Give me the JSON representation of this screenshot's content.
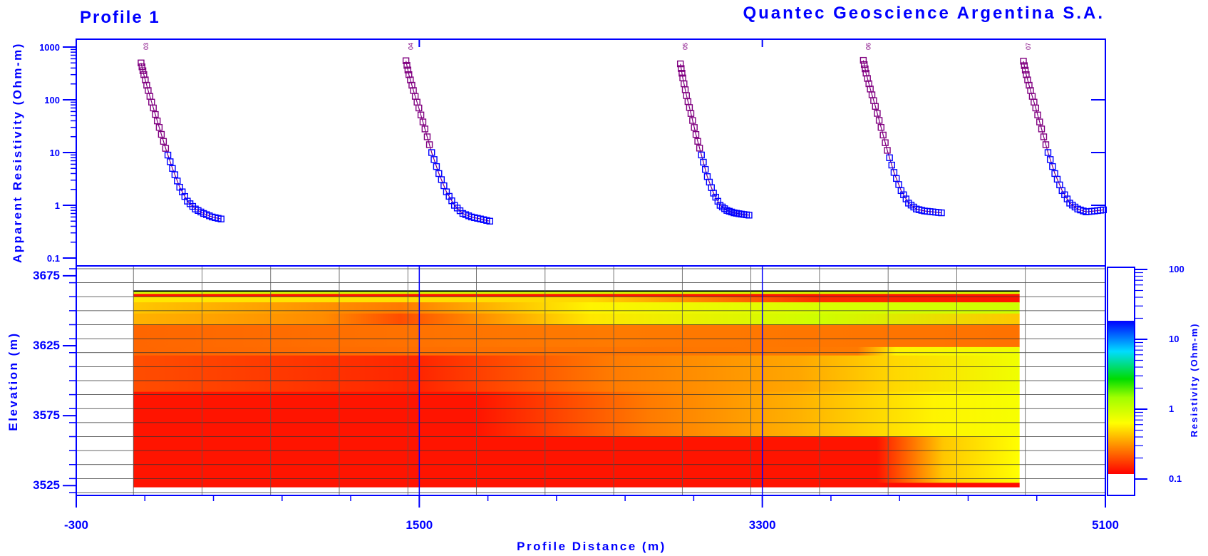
{
  "header": {
    "profile_title": "Profile 1",
    "company": "Quantec Geoscience Argentina S.A."
  },
  "colors": {
    "axis": "#0000ff",
    "text": "#0000ff",
    "grid": "#000000",
    "curve_high": "#800080",
    "curve_low": "#0000ff",
    "colorbar_low": "#ff0000",
    "colorbar_high": "#0000ff"
  },
  "chart_data": [
    {
      "type": "scatter",
      "title": "",
      "xlabel": "",
      "ylabel": "Apparent Resistivity (Ohm-m)",
      "y_scale": "log",
      "ylim": [
        0.1,
        1000
      ],
      "xlim": [
        -300,
        5100
      ],
      "y_ticks": [
        "1000",
        "100",
        "10",
        "1",
        "0.1"
      ],
      "grid": false,
      "series": [
        {
          "name": "03",
          "x_start": 40,
          "x_end": 460,
          "values": [
            500,
            300,
            150,
            70,
            30,
            12,
            5,
            2.2,
            1.2,
            0.85,
            0.7,
            0.6,
            0.55
          ]
        },
        {
          "name": "04",
          "x_start": 1430,
          "x_end": 1870,
          "values": [
            550,
            300,
            150,
            70,
            28,
            10,
            4,
            1.8,
            1.0,
            0.7,
            0.6,
            0.55,
            0.5
          ]
        },
        {
          "name": "05",
          "x_start": 2870,
          "x_end": 3230,
          "values": [
            480,
            260,
            120,
            55,
            22,
            9,
            3.5,
            1.7,
            1.0,
            0.8,
            0.72,
            0.68,
            0.65
          ]
        },
        {
          "name": "06",
          "x_start": 3830,
          "x_end": 4240,
          "values": [
            560,
            320,
            160,
            75,
            30,
            11,
            4.2,
            1.9,
            1.1,
            0.85,
            0.78,
            0.75,
            0.72
          ]
        },
        {
          "name": "07",
          "x_start": 4670,
          "x_end": 5090,
          "values": [
            540,
            300,
            150,
            70,
            28,
            10,
            4,
            1.9,
            1.1,
            0.85,
            0.75,
            0.78,
            0.82
          ]
        }
      ]
    },
    {
      "type": "heatmap",
      "title": "",
      "xlabel": "Profile Distance (m)",
      "ylabel": "Elevation (m)",
      "xlim": [
        -300,
        5100
      ],
      "ylim": [
        3520,
        3680
      ],
      "x_ticks": [
        "-300",
        "1500",
        "3300",
        "5100"
      ],
      "y_ticks": [
        "3675",
        "3625",
        "3575",
        "3525"
      ],
      "grid": true,
      "colorbar": {
        "label": "Resistivity (Ohm-m)",
        "scale": "log",
        "range": [
          0.1,
          100
        ],
        "ticks": [
          "100",
          "10",
          "1",
          "0.1"
        ]
      },
      "layers": [
        {
          "top": 3664,
          "bottom": 3662,
          "x_resistivity": [
            [
              0,
              1.5
            ],
            [
              4650,
              1.5
            ]
          ]
        },
        {
          "top": 3662,
          "bottom": 3660,
          "x_resistivity": [
            [
              0,
              0.12
            ],
            [
              4650,
              0.12
            ]
          ]
        },
        {
          "top": 3660,
          "bottom": 3656,
          "x_resistivity": [
            [
              0,
              0.8
            ],
            [
              2400,
              0.7
            ],
            [
              3600,
              0.15
            ],
            [
              4650,
              0.12
            ]
          ]
        },
        {
          "top": 3656,
          "bottom": 3648,
          "x_resistivity": [
            [
              0,
              0.6
            ],
            [
              1400,
              0.3
            ],
            [
              2400,
              0.9
            ],
            [
              3600,
              1.6
            ],
            [
              4650,
              1.8
            ]
          ]
        },
        {
          "top": 3648,
          "bottom": 3640,
          "x_resistivity": [
            [
              0,
              0.5
            ],
            [
              1000,
              0.35
            ],
            [
              1400,
              0.2
            ],
            [
              2400,
              0.8
            ],
            [
              3600,
              1.8
            ],
            [
              4650,
              0.6
            ]
          ]
        },
        {
          "top": 3640,
          "bottom": 3624,
          "x_resistivity": [
            [
              0,
              0.25
            ],
            [
              2500,
              0.3
            ],
            [
              4650,
              0.28
            ]
          ]
        },
        {
          "top": 3624,
          "bottom": 3618,
          "x_resistivity": [
            [
              0,
              0.25
            ],
            [
              3800,
              0.3
            ],
            [
              4000,
              0.9
            ],
            [
              4650,
              1.2
            ]
          ]
        },
        {
          "top": 3618,
          "bottom": 3592,
          "x_resistivity": [
            [
              0,
              0.2
            ],
            [
              1500,
              0.14
            ],
            [
              2500,
              0.3
            ],
            [
              3500,
              0.45
            ],
            [
              4000,
              0.7
            ],
            [
              4650,
              1.2
            ]
          ]
        },
        {
          "top": 3592,
          "bottom": 3560,
          "x_resistivity": [
            [
              0,
              0.12
            ],
            [
              1800,
              0.12
            ],
            [
              2700,
              0.3
            ],
            [
              3500,
              0.5
            ],
            [
              4200,
              0.9
            ],
            [
              4650,
              1.1
            ]
          ]
        },
        {
          "top": 3560,
          "bottom": 3527,
          "x_resistivity": [
            [
              0,
              0.12
            ],
            [
              3900,
              0.12
            ],
            [
              4250,
              0.6
            ],
            [
              4650,
              1.0
            ]
          ]
        },
        {
          "top": 3527,
          "bottom": 3524,
          "x_resistivity": [
            [
              0,
              0.12
            ],
            [
              3900,
              0.12
            ],
            [
              4000,
              0.11
            ],
            [
              4650,
              0.11
            ]
          ]
        }
      ]
    }
  ]
}
